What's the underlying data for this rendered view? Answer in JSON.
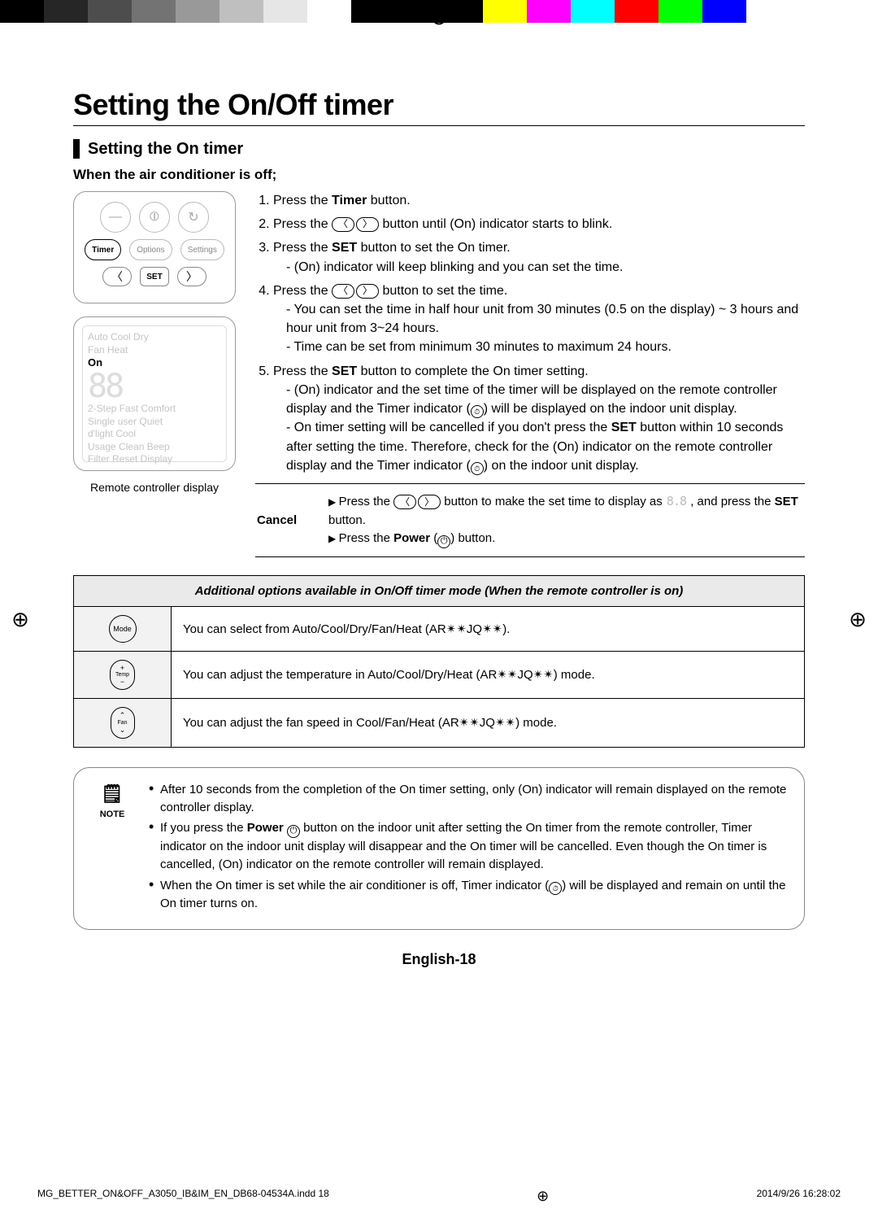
{
  "colorbar": [
    "#000000",
    "#262626",
    "#4d4d4d",
    "#737373",
    "#999999",
    "#bfbfbf",
    "#e6e6e6",
    "#ffffff",
    "#000000",
    "#000000",
    "#000000",
    "#ffff00",
    "#ff00ff",
    "#00ffff",
    "#ff0000",
    "#00ff00",
    "#0000ff",
    "#ffffff",
    "#ffffff",
    "#ffffff"
  ],
  "title": "Setting the On/Off timer",
  "section_title": "Setting the On timer",
  "subhead": "When the air conditioner is off;",
  "remote_buttons": {
    "top_row": [
      "—",
      "⦶",
      "↻"
    ],
    "mid_pills": [
      {
        "label": "Timer",
        "selected": true
      },
      {
        "label": "Options",
        "selected": false
      },
      {
        "label": "Settings",
        "selected": false
      }
    ],
    "set_label": "SET"
  },
  "remote_display": {
    "ghost_top": "Auto Cool Dry",
    "ghost_top2": "Fan   Heat",
    "on_label": "On",
    "ghost_lines": [
      "2-Step  Fast  Comfort",
      "Single user Quiet",
      "d'light Cool",
      "Usage   Clean   Beep",
      "Filter  Reset   Display"
    ]
  },
  "remote_caption": "Remote controller display",
  "steps": [
    {
      "pre": "Press the ",
      "bold": "Timer",
      "post": " button."
    },
    {
      "pre": "Press the ",
      "arrows": true,
      "post": " button until (On) indicator starts to blink."
    },
    {
      "pre": "Press the ",
      "bold": "SET",
      "post": " button to set the On timer.",
      "sub": [
        "(On) indicator will keep blinking and you can set the time."
      ]
    },
    {
      "pre": "Press the ",
      "arrows": true,
      "post": " button to set the time.",
      "sub": [
        "You can set the time in half hour unit from 30 minutes (0.5 on the display) ~ 3 hours and hour unit from 3~24 hours.",
        "Time can be set from minimum 30 minutes to maximum 24 hours."
      ]
    },
    {
      "pre": "Press the ",
      "bold": "SET",
      "post": " button to complete the On timer setting.",
      "sub5": true
    }
  ],
  "step5_sub": [
    "(On) indicator and the set time of the timer will be displayed on the remote controller display and the Timer indicator (⏱) will be displayed on the indoor unit display.",
    "On timer setting will be cancelled if you don't press the SET button within 10 seconds after setting the time. Therefore, check for the (On) indicator on the remote controller display and the Timer indicator (⏱) on the indoor unit display."
  ],
  "cancel": {
    "label": "Cancel",
    "line1_pre": "Press the ",
    "line1_mid": " button to make the set time to display as ",
    "line1_post": ", and press the ",
    "line1_bold": "SET",
    "line1_end": " button.",
    "line2_pre": "Press the ",
    "line2_bold": "Power",
    "line2_mid": " (",
    "line2_end": ") button."
  },
  "options_header": "Additional options available in On/Off timer mode (When the remote controller is on)",
  "options_rows": [
    {
      "btn": "Mode",
      "btn_style": "round",
      "text": "You can select from Auto/Cool/Dry/Fan/Heat (AR✴✴JQ✴✴)."
    },
    {
      "btn": "Temp",
      "btn_style": "tall",
      "symbols": [
        "+",
        "−"
      ],
      "text": "You can adjust the temperature in Auto/Cool/Dry/Heat (AR✴✴JQ✴✴) mode."
    },
    {
      "btn": "Fan",
      "btn_style": "tall",
      "symbols": [
        "⌃",
        "⌄"
      ],
      "text": "You can adjust the fan speed in Cool/Fan/Heat (AR✴✴JQ✴✴) mode."
    }
  ],
  "note_label": "NOTE",
  "notes": [
    "After 10 seconds from the completion of the On timer setting, only (On) indicator will remain displayed on the remote controller display.",
    "If you press the Power ⏻ button on the indoor unit after setting the On timer from the remote controller, Timer indicator on the indoor unit display will disappear and the On timer will be cancelled. Even though the On timer is cancelled, (On) indicator on the remote controller will remain displayed.",
    "When the On timer is set while the air conditioner is off, Timer indicator (⏱) will be displayed and remain on until the On timer turns on."
  ],
  "page_num": "English-18",
  "footer": {
    "left": "MG_BETTER_ON&OFF_A3050_IB&IM_EN_DB68-04534A.indd   18",
    "right": "2014/9/26   16:28:02"
  }
}
